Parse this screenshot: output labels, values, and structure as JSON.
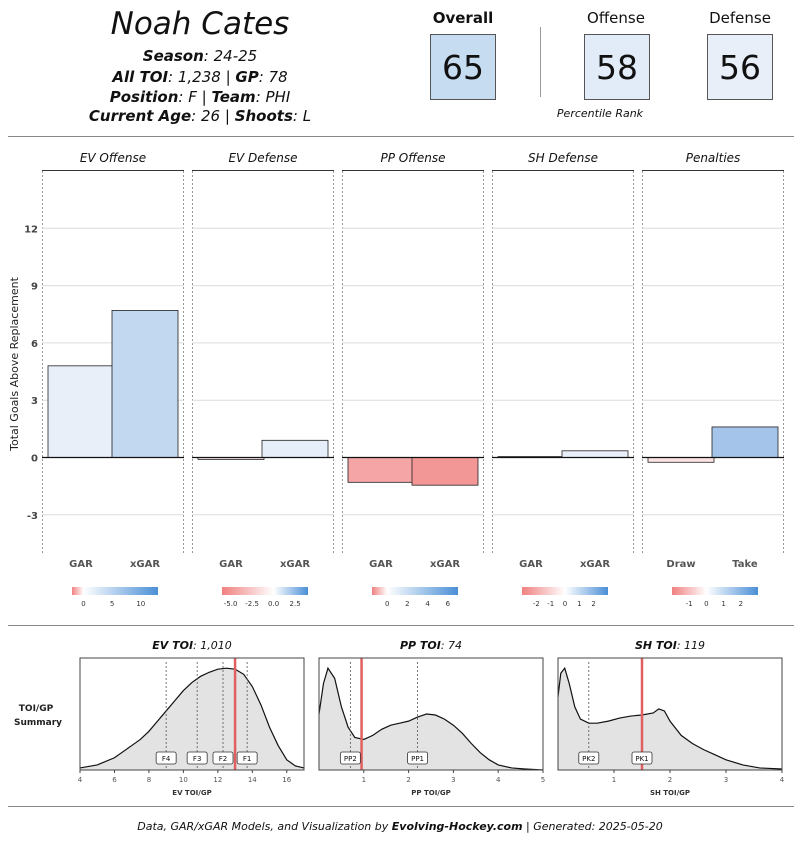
{
  "header": {
    "player_name": "Noah Cates",
    "season_label": "Season",
    "season_value": "24-25",
    "toi_label": "All TOI",
    "toi_value": "1,238",
    "gp_label": "GP",
    "gp_value": "78",
    "position_label": "Position",
    "position_value": "F",
    "team_label": "Team",
    "team_value": "PHI",
    "age_label": "Current Age",
    "age_value": "26",
    "shoots_label": "Shoots",
    "shoots_value": "L"
  },
  "percentiles": {
    "overall_label": "Overall",
    "overall_value": "65",
    "offense_label": "Offense",
    "offense_value": "58",
    "defense_label": "Defense",
    "defense_value": "56",
    "caption": "Percentile Rank",
    "colors": {
      "overall": "#c6dcf1",
      "offense": "#e2ecf8",
      "defense": "#e8eff9"
    }
  },
  "chart_data": [
    {
      "type": "bar",
      "ylabel": "Total Goals Above Replacement",
      "ylim": [
        -5,
        15
      ],
      "yticks": [
        -3,
        0,
        3,
        6,
        9,
        12
      ],
      "grid": true,
      "panels": [
        {
          "title": "EV Offense",
          "categories": [
            "GAR",
            "xGAR"
          ],
          "values": [
            4.8,
            7.7
          ],
          "colors": [
            "#e8eff9",
            "#c2d7f0"
          ],
          "legend": {
            "ticks": [
              "0",
              "5",
              "10"
            ],
            "min": -2,
            "max": 13,
            "tick_values": [
              0,
              5,
              10
            ]
          }
        },
        {
          "title": "EV Defense",
          "categories": [
            "GAR",
            "xGAR"
          ],
          "values": [
            -0.1,
            0.9
          ],
          "colors": [
            "#fbe7e7",
            "#e6eef9"
          ],
          "legend": {
            "ticks": [
              "-5.0",
              "-2.5",
              "0.0",
              "2.5"
            ],
            "min": -6,
            "max": 4,
            "tick_values": [
              -5,
              -2.5,
              0,
              2.5
            ]
          }
        },
        {
          "title": "PP Offense",
          "categories": [
            "GAR",
            "xGAR"
          ],
          "values": [
            -1.3,
            -1.45
          ],
          "colors": [
            "#f5a5a5",
            "#f29696"
          ],
          "legend": {
            "ticks": [
              "0",
              "2",
              "4",
              "6"
            ],
            "min": -1.5,
            "max": 7,
            "tick_values": [
              0,
              2,
              4,
              6
            ]
          }
        },
        {
          "title": "SH Defense",
          "categories": [
            "GAR",
            "xGAR"
          ],
          "values": [
            0.05,
            0.35
          ],
          "colors": [
            "#f5f8fc",
            "#e8eff9"
          ],
          "legend": {
            "ticks": [
              "-2",
              "-1",
              "0",
              "1",
              "2"
            ],
            "min": -3,
            "max": 3,
            "tick_values": [
              -2,
              -1,
              0,
              1,
              2
            ]
          }
        },
        {
          "title": "Penalties",
          "categories": [
            "Draw",
            "Take"
          ],
          "values": [
            -0.25,
            1.6
          ],
          "colors": [
            "#fce3e3",
            "#a4c4e9"
          ],
          "legend": {
            "ticks": [
              "-1",
              "0",
              "1",
              "2"
            ],
            "min": -2,
            "max": 3,
            "tick_values": [
              -1,
              0,
              1,
              2
            ]
          }
        }
      ]
    },
    {
      "type": "area",
      "row_label_1": "TOI/GP",
      "row_label_2": "Summary",
      "panels": [
        {
          "title_label": "EV TOI",
          "title_value": "1,010",
          "xlabel": "EV TOI/GP",
          "xlim": [
            4,
            17
          ],
          "xticks": [
            4,
            6,
            8,
            10,
            12,
            14,
            16
          ],
          "player_value": 13.0,
          "density_x": [
            4,
            5,
            6,
            7,
            7.5,
            8,
            8.5,
            9,
            9.5,
            10,
            10.5,
            11,
            11.5,
            12,
            12.5,
            13,
            13.5,
            14,
            14.5,
            15,
            15.5,
            16,
            16.5,
            17
          ],
          "density_y": [
            0.02,
            0.05,
            0.12,
            0.24,
            0.3,
            0.38,
            0.48,
            0.58,
            0.68,
            0.78,
            0.86,
            0.92,
            0.96,
            0.99,
            1.0,
            0.99,
            0.94,
            0.82,
            0.64,
            0.42,
            0.24,
            0.1,
            0.04,
            0.02
          ],
          "ymax": 1.1,
          "refs": [
            {
              "label": "F4",
              "x": 9.0
            },
            {
              "label": "F3",
              "x": 10.8
            },
            {
              "label": "F2",
              "x": 12.3
            },
            {
              "label": "F1",
              "x": 13.7
            }
          ]
        },
        {
          "title_label": "PP TOI",
          "title_value": "74",
          "xlabel": "PP TOI/GP",
          "xlim": [
            0,
            5
          ],
          "xticks": [
            1,
            2,
            3,
            4,
            5
          ],
          "player_value": 0.95,
          "density_x": [
            0,
            0.1,
            0.2,
            0.35,
            0.5,
            0.65,
            0.8,
            1.0,
            1.2,
            1.4,
            1.6,
            1.8,
            2.0,
            2.2,
            2.4,
            2.6,
            2.8,
            3.0,
            3.2,
            3.4,
            3.6,
            3.8,
            4.0,
            4.3,
            4.6,
            5.0
          ],
          "density_y": [
            0.55,
            0.85,
            1.0,
            0.9,
            0.62,
            0.42,
            0.32,
            0.3,
            0.34,
            0.4,
            0.44,
            0.46,
            0.48,
            0.52,
            0.55,
            0.54,
            0.5,
            0.44,
            0.36,
            0.26,
            0.17,
            0.1,
            0.05,
            0.02,
            0.01,
            0.0
          ],
          "ymax": 1.1,
          "refs": [
            {
              "label": "PP2",
              "x": 0.7
            },
            {
              "label": "PP1",
              "x": 2.2
            }
          ]
        },
        {
          "title_label": "SH TOI",
          "title_value": "119",
          "xlabel": "SH TOI/GP",
          "xlim": [
            0,
            4
          ],
          "xticks": [
            1,
            2,
            3,
            4
          ],
          "player_value": 1.5,
          "density_x": [
            0,
            0.05,
            0.12,
            0.2,
            0.3,
            0.4,
            0.55,
            0.7,
            0.9,
            1.1,
            1.3,
            1.5,
            1.7,
            1.8,
            1.9,
            2.0,
            2.2,
            2.4,
            2.6,
            2.8,
            3.0,
            3.3,
            3.6,
            4.0
          ],
          "density_y": [
            0.72,
            0.95,
            1.0,
            0.85,
            0.62,
            0.5,
            0.46,
            0.46,
            0.48,
            0.51,
            0.53,
            0.54,
            0.56,
            0.6,
            0.58,
            0.48,
            0.34,
            0.26,
            0.2,
            0.15,
            0.1,
            0.05,
            0.02,
            0.01
          ],
          "ymax": 1.1,
          "refs": [
            {
              "label": "PK2",
              "x": 0.55
            },
            {
              "label": "PK1",
              "x": 1.5
            }
          ]
        }
      ]
    }
  ],
  "footer": {
    "prefix": "Data, GAR/xGAR Models, and Visualization by ",
    "brand": "Evolving-Hockey.com",
    "suffix": " | Generated: 2025-05-20"
  }
}
